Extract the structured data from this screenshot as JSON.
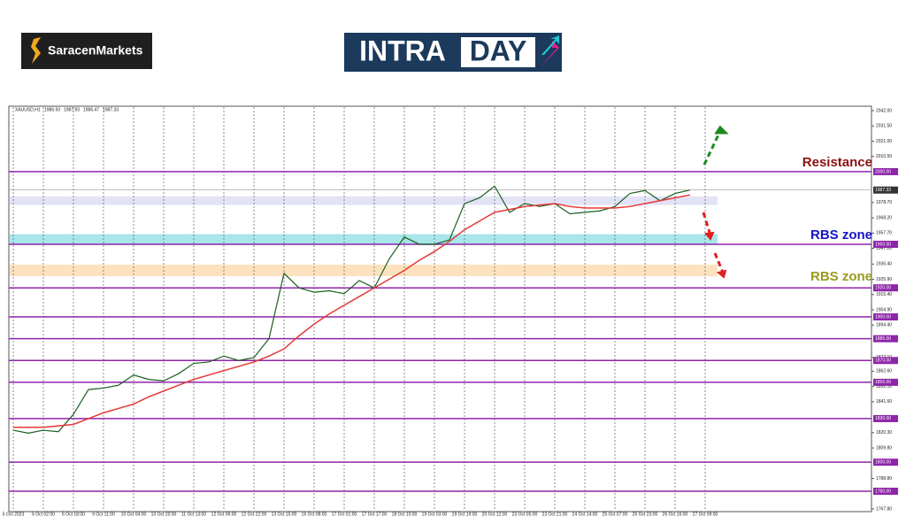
{
  "header": {
    "broker": "SaracenMarkets",
    "badge_left": "INTRA",
    "badge_right": "DAY"
  },
  "chart_data": {
    "type": "line",
    "symbol": "XAUUSD,H1",
    "ohlc": [
      1986.93,
      1987.93,
      1986.47,
      1987.33
    ],
    "categories": [
      "5 Oct 2023",
      null,
      "6 Oct 02:00",
      null,
      "6 Oct 18:00",
      null,
      "9 Oct 11:00",
      null,
      "10 Oct 04:00",
      null,
      "10 Oct 20:00",
      null,
      "11 Oct 13:00",
      null,
      "12 Oct 06:00",
      null,
      "12 Oct 22:00",
      null,
      "13 Oct 15:00",
      null,
      "16 Oct 08:00",
      null,
      "17 Oct 01:00",
      null,
      "17 Oct 17:00",
      null,
      "18 Oct 10:00",
      null,
      "19 Oct 03:00",
      null,
      "19 Oct 19:00",
      null,
      "20 Oct 12:00",
      null,
      "23 Oct 05:00",
      null,
      "23 Oct 21:00",
      null,
      "24 Oct 14:00",
      null,
      "25 Oct 07:00",
      null,
      "25 Oct 23:00",
      null,
      "26 Oct 16:00",
      null,
      "27 Oct 09:00"
    ],
    "series": [
      {
        "color": "#1b5e20",
        "values": [
          1822,
          1820,
          1822,
          1821,
          1833,
          1850,
          1851,
          1853,
          1860,
          1857,
          1856,
          1861,
          1868,
          1869,
          1873,
          1870,
          1872,
          1885,
          1930,
          1920,
          1917,
          1918,
          1916,
          1925,
          1920,
          1940,
          1955,
          1950,
          1950,
          1953,
          1978,
          1982,
          1990,
          1972,
          1978,
          1976,
          1978,
          1971,
          1972,
          1973,
          1976,
          1985,
          1987,
          1980,
          1985,
          1987.33,
          null
        ]
      },
      {
        "color": "#e53935",
        "values": [
          1824,
          1824,
          1824,
          1825,
          1826,
          1830,
          1834,
          1837,
          1840,
          1845,
          1849,
          1853,
          1857,
          1860,
          1863,
          1866,
          1869,
          1873,
          1878,
          1887,
          1895,
          1902,
          1908,
          1914,
          1920,
          1926,
          1932,
          1939,
          1945,
          1952,
          1960,
          1966,
          1972,
          1974,
          1976,
          1977,
          1978,
          1976,
          1975,
          1975,
          1975,
          1976,
          1978,
          1980,
          1982,
          1984,
          null
        ]
      }
    ],
    "ylim": [
      1767.8,
      2042
    ],
    "yticks": [
      {
        "value": 2042,
        "label": "2042.00"
      },
      {
        "value": 2031.5,
        "label": "2031.50"
      },
      {
        "value": 2021,
        "label": "2021.00"
      },
      {
        "value": 2010.5,
        "label": "2010.50"
      },
      {
        "value": 1978.7,
        "label": "1978.70"
      },
      {
        "value": 1968.2,
        "label": "1968.20"
      },
      {
        "value": 1957.7,
        "label": "1957.70"
      },
      {
        "value": 1947.2,
        "label": "1947.20"
      },
      {
        "value": 1936.4,
        "label": "1936.40"
      },
      {
        "value": 1925.9,
        "label": "1925.90"
      },
      {
        "value": 1915.4,
        "label": "1915.40"
      },
      {
        "value": 1904.9,
        "label": "1904.90"
      },
      {
        "value": 1894.4,
        "label": "1894.40"
      },
      {
        "value": 1872.1,
        "label": "1872.10"
      },
      {
        "value": 1862.6,
        "label": "1862.60"
      },
      {
        "value": 1852.1,
        "label": "1852.10"
      },
      {
        "value": 1841.6,
        "label": "1841.60"
      },
      {
        "value": 1820.3,
        "label": "1820.30"
      },
      {
        "value": 1809.8,
        "label": "1809.80"
      },
      {
        "value": 1788.8,
        "label": "1788.80"
      },
      {
        "value": 1767.8,
        "label": "1767.80"
      }
    ],
    "levels": [
      {
        "value": 2000,
        "label": "2000.00"
      },
      {
        "value": 1950,
        "label": "1950.00"
      },
      {
        "value": 1920,
        "label": "1920.00"
      },
      {
        "value": 1900,
        "label": "1900.00"
      },
      {
        "value": 1885,
        "label": "1885.00"
      },
      {
        "value": 1870,
        "label": "1870.00"
      },
      {
        "value": 1855,
        "label": "1855.00"
      },
      {
        "value": 1830,
        "label": "1830.00"
      },
      {
        "value": 1800,
        "label": "1800.00"
      },
      {
        "value": 1780,
        "label": "1780.00"
      }
    ],
    "level_color": "#8e24aa",
    "current_price": 1987.33,
    "zones": [
      {
        "range": [
          1977,
          1983
        ],
        "color": "#e3e3f7"
      },
      {
        "range": [
          1950,
          1957
        ],
        "color": "#a8e6ea"
      },
      {
        "range": [
          1928,
          1936
        ],
        "color": "#fde2c0"
      }
    ],
    "annotations": [
      {
        "text": "Resistance",
        "color": "#8b1010"
      },
      {
        "text": "RBS zone",
        "color": "#1515c8"
      },
      {
        "text": "RBS zone",
        "color": "#9a9a20"
      }
    ]
  }
}
